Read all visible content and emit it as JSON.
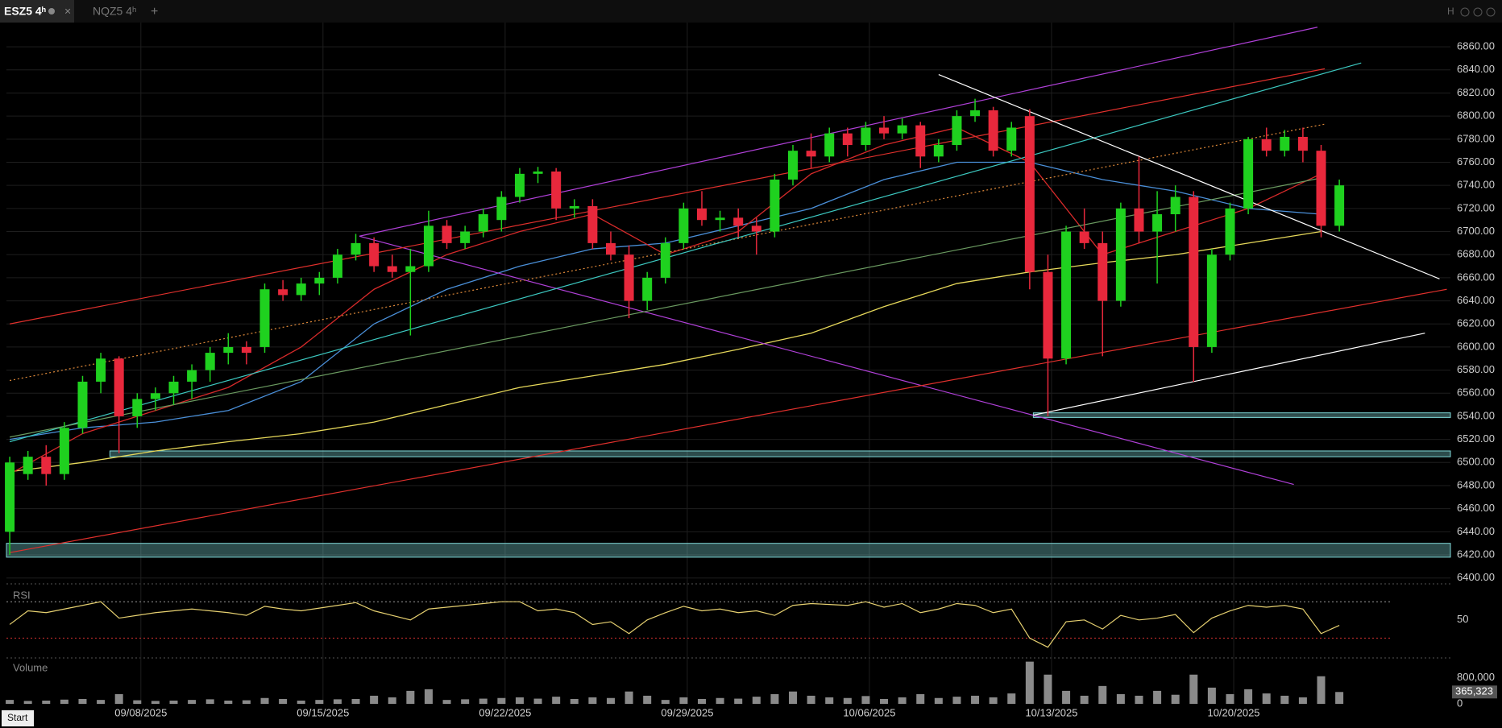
{
  "tabs": [
    {
      "label": "ESZ5 4ʰ",
      "active": true
    },
    {
      "label": "NQZ5 4ʰ",
      "active": false
    }
  ],
  "toolbar_label": "H",
  "start_label": "Start",
  "chart_data": [
    {
      "type": "candlestick",
      "x": [
        0,
        1,
        2,
        3,
        4,
        5,
        6,
        7,
        8,
        9,
        10,
        11,
        12,
        13,
        14,
        15,
        16,
        17,
        18,
        19,
        20,
        21,
        22,
        23,
        24,
        25,
        26,
        27,
        28,
        29,
        30,
        31,
        32,
        33,
        34,
        35,
        36,
        37,
        38,
        39,
        40,
        41,
        42,
        43,
        44,
        45,
        46,
        47,
        48,
        49,
        50,
        51,
        52,
        53,
        54,
        55,
        56,
        57,
        58,
        59,
        60,
        61,
        62,
        63,
        64,
        65,
        66,
        67,
        68,
        69,
        70,
        71,
        72,
        73
      ],
      "open": [
        6440,
        6490,
        6505,
        6490,
        6530,
        6570,
        6590,
        6540,
        6555,
        6560,
        6570,
        6580,
        6595,
        6600,
        6600,
        6650,
        6645,
        6655,
        6660,
        6680,
        6690,
        6670,
        6665,
        6670,
        6705,
        6690,
        6700,
        6710,
        6730,
        6750,
        6752,
        6720,
        6722,
        6690,
        6680,
        6640,
        6660,
        6690,
        6720,
        6710,
        6712,
        6705,
        6700,
        6745,
        6770,
        6765,
        6785,
        6775,
        6790,
        6785,
        6792,
        6765,
        6775,
        6800,
        6805,
        6770,
        6800,
        6665,
        6590,
        6700,
        6690,
        6640,
        6720,
        6700,
        6715,
        6730,
        6600,
        6680,
        6720,
        6780,
        6770,
        6782,
        6770,
        6705
      ],
      "high": [
        6505,
        6510,
        6515,
        6535,
        6575,
        6595,
        6592,
        6560,
        6565,
        6575,
        6585,
        6600,
        6612,
        6605,
        6655,
        6658,
        6660,
        6665,
        6685,
        6698,
        6695,
        6680,
        6685,
        6718,
        6710,
        6705,
        6720,
        6735,
        6755,
        6756,
        6755,
        6728,
        6728,
        6700,
        6688,
        6665,
        6695,
        6725,
        6735,
        6718,
        6720,
        6712,
        6750,
        6775,
        6785,
        6790,
        6790,
        6795,
        6800,
        6798,
        6795,
        6780,
        6805,
        6815,
        6808,
        6795,
        6806,
        6680,
        6705,
        6720,
        6700,
        6725,
        6765,
        6735,
        6740,
        6735,
        6685,
        6725,
        6782,
        6790,
        6788,
        6790,
        6775,
        6745
      ],
      "low": [
        6420,
        6485,
        6480,
        6485,
        6525,
        6560,
        6508,
        6530,
        6545,
        6550,
        6555,
        6570,
        6585,
        6585,
        6595,
        6640,
        6640,
        6645,
        6655,
        6675,
        6665,
        6660,
        6610,
        6665,
        6685,
        6685,
        6695,
        6700,
        6725,
        6742,
        6710,
        6712,
        6685,
        6675,
        6625,
        6632,
        6655,
        6685,
        6705,
        6700,
        6695,
        6680,
        6695,
        6740,
        6755,
        6760,
        6765,
        6770,
        6780,
        6780,
        6755,
        6760,
        6770,
        6795,
        6765,
        6765,
        6650,
        6540,
        6585,
        6685,
        6592,
        6635,
        6690,
        6655,
        6700,
        6570,
        6595,
        6675,
        6715,
        6765,
        6765,
        6760,
        6695,
        6700
      ],
      "close": [
        6500,
        6505,
        6490,
        6530,
        6570,
        6590,
        6540,
        6555,
        6560,
        6570,
        6580,
        6595,
        6600,
        6595,
        6650,
        6645,
        6655,
        6660,
        6680,
        6690,
        6670,
        6665,
        6670,
        6705,
        6690,
        6700,
        6715,
        6730,
        6750,
        6752,
        6720,
        6722,
        6690,
        6680,
        6640,
        6660,
        6690,
        6720,
        6710,
        6712,
        6705,
        6700,
        6745,
        6770,
        6765,
        6785,
        6775,
        6790,
        6785,
        6792,
        6765,
        6775,
        6800,
        6805,
        6770,
        6790,
        6665,
        6590,
        6700,
        6690,
        6640,
        6720,
        6700,
        6715,
        6730,
        6600,
        6680,
        6720,
        6780,
        6770,
        6782,
        6770,
        6705,
        6740
      ],
      "up_color": "#1fd11f",
      "down_color": "#e8283c",
      "xlim": [
        -0.18,
        79.1
      ],
      "xticks": [
        {
          "value": 7.2,
          "label": "09/08/2025"
        },
        {
          "value": 17.2,
          "label": "09/15/2025"
        },
        {
          "value": 27.2,
          "label": "09/22/2025"
        },
        {
          "value": 37.2,
          "label": "09/29/2025"
        },
        {
          "value": 47.2,
          "label": "10/06/2025"
        },
        {
          "value": 57.2,
          "label": "10/13/2025"
        },
        {
          "value": 67.2,
          "label": "10/20/2025"
        }
      ],
      "ylim": [
        6397,
        6881
      ],
      "yticks": [
        {
          "value": 6400,
          "label": "6400.00"
        },
        {
          "value": 6420,
          "label": "6420.00"
        },
        {
          "value": 6440,
          "label": "6440.00"
        },
        {
          "value": 6460,
          "label": "6460.00"
        },
        {
          "value": 6480,
          "label": "6480.00"
        },
        {
          "value": 6500,
          "label": "6500.00"
        },
        {
          "value": 6520,
          "label": "6520.00"
        },
        {
          "value": 6540,
          "label": "6540.00"
        },
        {
          "value": 6560,
          "label": "6560.00"
        },
        {
          "value": 6580,
          "label": "6580.00"
        },
        {
          "value": 6600,
          "label": "6600.00"
        },
        {
          "value": 6620,
          "label": "6620.00"
        },
        {
          "value": 6640,
          "label": "6640.00"
        },
        {
          "value": 6660,
          "label": "6660.00"
        },
        {
          "value": 6680,
          "label": "6680.00"
        },
        {
          "value": 6700,
          "label": "6700.00"
        },
        {
          "value": 6720,
          "label": "6720.00"
        },
        {
          "value": 6740,
          "label": "6740.00"
        },
        {
          "value": 6760,
          "label": "6760.00"
        },
        {
          "value": 6780,
          "label": "6780.00"
        },
        {
          "value": 6800,
          "label": "6800.00"
        },
        {
          "value": 6820,
          "label": "6820.00"
        },
        {
          "value": 6840,
          "label": "6840.00"
        },
        {
          "value": 6860,
          "label": "6860.00"
        }
      ],
      "grid": true,
      "overlays": [
        {
          "color": "#e6d85a",
          "x": [
            0,
            4,
            8,
            12,
            16,
            20,
            24,
            28,
            32,
            36,
            40,
            44,
            48,
            52,
            56,
            60,
            64,
            68,
            72
          ],
          "values": [
            6492,
            6500,
            6510,
            6518,
            6525,
            6535,
            6550,
            6565,
            6575,
            6585,
            6598,
            6612,
            6635,
            6655,
            6665,
            6673,
            6680,
            6690,
            6700
          ]
        },
        {
          "color": "#4a8fd8",
          "x": [
            0,
            4,
            8,
            12,
            16,
            20,
            24,
            28,
            32,
            36,
            40,
            44,
            48,
            52,
            56,
            60,
            64,
            68,
            72
          ],
          "values": [
            6520,
            6530,
            6535,
            6545,
            6570,
            6620,
            6650,
            6670,
            6685,
            6690,
            6705,
            6720,
            6745,
            6760,
            6760,
            6745,
            6735,
            6720,
            6715
          ]
        },
        {
          "color": "#d62a2a",
          "x": [
            0,
            4,
            8,
            12,
            16,
            20,
            24,
            28,
            32,
            36,
            40,
            44,
            48,
            52,
            56,
            60,
            64,
            68,
            72
          ],
          "values": [
            6490,
            6525,
            6545,
            6565,
            6600,
            6650,
            6680,
            6700,
            6715,
            6680,
            6700,
            6750,
            6775,
            6790,
            6760,
            6680,
            6700,
            6720,
            6750
          ]
        }
      ],
      "drawings": [
        {
          "color": "#b040d8",
          "dash": false,
          "x": [
            19.2,
            71.8
          ],
          "y": [
            6696,
            6877
          ]
        },
        {
          "color": "#b040d8",
          "dash": false,
          "x": [
            19.2,
            70.5
          ],
          "y": [
            6696,
            6481
          ]
        },
        {
          "color": "#e0302c",
          "dash": false,
          "x": [
            0,
            72.2
          ],
          "y": [
            6620,
            6841
          ]
        },
        {
          "color": "#e0302c",
          "dash": false,
          "x": [
            0,
            78.9
          ],
          "y": [
            6422,
            6650
          ]
        },
        {
          "color": "#e08a3a",
          "dash": true,
          "x": [
            0,
            72.2
          ],
          "y": [
            6571,
            6793
          ]
        },
        {
          "color": "#3cc8c0",
          "dash": false,
          "x": [
            0,
            74.2
          ],
          "y": [
            6518,
            6846
          ]
        },
        {
          "color": "#6a9a60",
          "dash": false,
          "x": [
            0,
            72.2
          ],
          "y": [
            6522,
            6747
          ]
        },
        {
          "color": "#ffffff",
          "dash": false,
          "x": [
            51.0,
            78.5
          ],
          "y": [
            6836,
            6659
          ]
        },
        {
          "color": "#ffffff",
          "dash": false,
          "x": [
            56.2,
            77.7
          ],
          "y": [
            6541,
            6612
          ]
        }
      ],
      "zones": [
        {
          "color": "#7fd8d8",
          "x_from": 56.2,
          "low": 6539,
          "high": 6543
        },
        {
          "color": "#7fd8d8",
          "x_from": 5.5,
          "low": 6505,
          "high": 6510
        },
        {
          "color": "#7fd8d8",
          "x_from": -0.18,
          "low": 6418,
          "high": 6430
        }
      ]
    },
    {
      "type": "line",
      "title": "RSI",
      "x": [
        0,
        1,
        2,
        3,
        4,
        5,
        6,
        7,
        8,
        9,
        10,
        11,
        12,
        13,
        14,
        15,
        16,
        17,
        18,
        19,
        20,
        21,
        22,
        23,
        24,
        25,
        26,
        27,
        28,
        29,
        30,
        31,
        32,
        33,
        34,
        35,
        36,
        37,
        38,
        39,
        40,
        41,
        42,
        43,
        44,
        45,
        46,
        47,
        48,
        49,
        50,
        51,
        52,
        53,
        54,
        55,
        56,
        57,
        58,
        59,
        60,
        61,
        62,
        63,
        64,
        65,
        66,
        67,
        68,
        69,
        70,
        71,
        72,
        73
      ],
      "values": [
        45,
        60,
        58,
        62,
        66,
        70,
        52,
        55,
        58,
        60,
        62,
        60,
        58,
        55,
        65,
        62,
        60,
        63,
        66,
        69,
        60,
        55,
        50,
        62,
        64,
        66,
        68,
        70,
        70,
        60,
        62,
        58,
        45,
        48,
        35,
        50,
        58,
        65,
        60,
        62,
        58,
        60,
        55,
        66,
        68,
        67,
        66,
        70,
        64,
        68,
        58,
        62,
        68,
        66,
        58,
        62,
        30,
        20,
        48,
        50,
        40,
        55,
        50,
        52,
        56,
        36,
        52,
        60,
        66,
        64,
        66,
        62,
        35,
        44
      ],
      "color": "#e6d070",
      "ylim": [
        10,
        87
      ],
      "yticks": [
        50
      ],
      "levels": [
        {
          "value": 70,
          "color": "#9a9a9a"
        },
        {
          "value": 30,
          "color": "#d03030"
        }
      ]
    },
    {
      "type": "bar",
      "title": "Volume",
      "x": [
        0,
        1,
        2,
        3,
        4,
        5,
        6,
        7,
        8,
        9,
        10,
        11,
        12,
        13,
        14,
        15,
        16,
        17,
        18,
        19,
        20,
        21,
        22,
        23,
        24,
        25,
        26,
        27,
        28,
        29,
        30,
        31,
        32,
        33,
        34,
        35,
        36,
        37,
        38,
        39,
        40,
        41,
        42,
        43,
        44,
        45,
        46,
        47,
        48,
        49,
        50,
        51,
        52,
        53,
        54,
        55,
        56,
        57,
        58,
        59,
        60,
        61,
        62,
        63,
        64,
        65,
        66,
        67,
        68,
        69,
        70,
        71,
        72,
        73
      ],
      "values": [
        120000,
        90000,
        100000,
        130000,
        150000,
        120000,
        300000,
        110000,
        90000,
        100000,
        120000,
        140000,
        100000,
        110000,
        180000,
        150000,
        100000,
        120000,
        140000,
        150000,
        250000,
        200000,
        400000,
        450000,
        120000,
        140000,
        160000,
        180000,
        200000,
        160000,
        220000,
        150000,
        200000,
        180000,
        380000,
        250000,
        120000,
        200000,
        150000,
        180000,
        160000,
        220000,
        300000,
        380000,
        250000,
        200000,
        180000,
        240000,
        150000,
        200000,
        300000,
        180000,
        220000,
        250000,
        200000,
        320000,
        1300000,
        900000,
        400000,
        250000,
        550000,
        300000,
        250000,
        400000,
        280000,
        900000,
        500000,
        300000,
        450000,
        320000,
        250000,
        200000,
        850000,
        365323
      ],
      "last_value_label": "365,323",
      "color": "#8a8a8a",
      "ylim": [
        0,
        1340000
      ],
      "yticks": [
        {
          "value": 800000,
          "label": "800,000"
        },
        0
      ]
    }
  ]
}
